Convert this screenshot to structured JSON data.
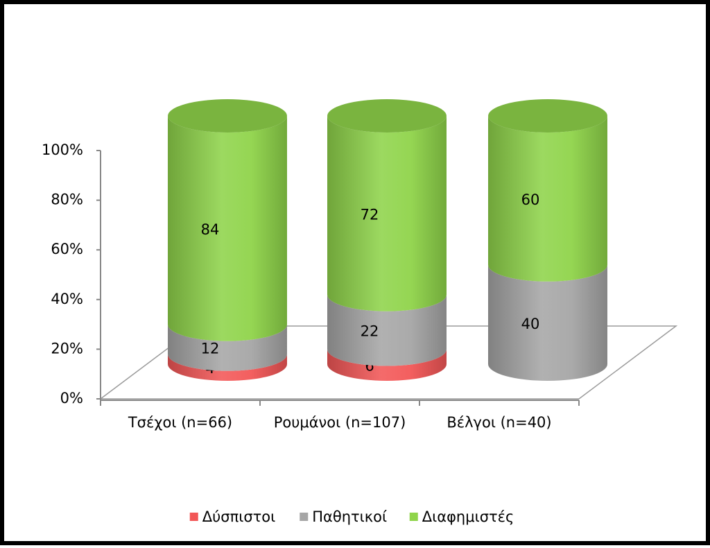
{
  "chart_data": {
    "type": "bar3d-cylinder-stacked",
    "categories": [
      "Τσέχοι (n=66)",
      "Ρουμάνοι (n=107)",
      "Βέλγοι (n=40)"
    ],
    "series": [
      {
        "name": "Δύσπιστοι",
        "color": "#f25757",
        "values": [
          4,
          6,
          null
        ]
      },
      {
        "name": "Παθητικοί",
        "color": "#a6a6a6",
        "values": [
          12,
          22,
          40
        ]
      },
      {
        "name": "Διαφημιστές",
        "color": "#8fd44a",
        "values": [
          84,
          72,
          60
        ]
      }
    ],
    "ylim": [
      0,
      100
    ],
    "yticks": [
      {
        "value": 0,
        "label": "0%"
      },
      {
        "value": 20,
        "label": "20%"
      },
      {
        "value": 40,
        "label": "40%"
      },
      {
        "value": 60,
        "label": "60%"
      },
      {
        "value": 80,
        "label": "80%"
      },
      {
        "value": 100,
        "label": "100%"
      }
    ],
    "legend": "bottom"
  }
}
